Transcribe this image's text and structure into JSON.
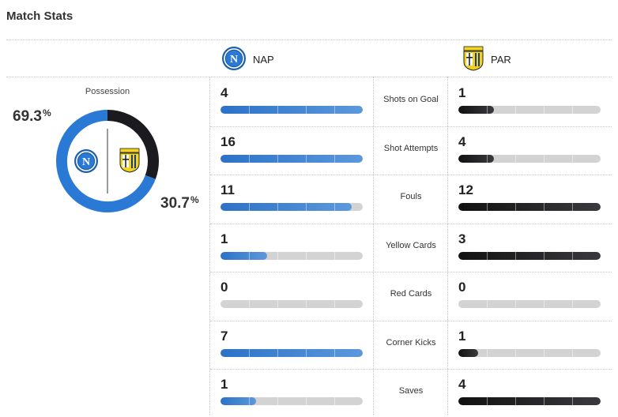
{
  "title": "Match Stats",
  "teams": {
    "home": {
      "abbr": "NAP",
      "color": "#2a7ad5"
    },
    "away": {
      "abbr": "PAR",
      "color": "#1b1b1f"
    }
  },
  "possession": {
    "label": "Possession",
    "home": 69.3,
    "away": 30.7,
    "home_text": "69.3",
    "away_text": "30.7",
    "unit": "%"
  },
  "stats": [
    {
      "label": "Shots on Goal",
      "home": "4",
      "away": "1",
      "home_fill": 1.0,
      "away_fill": 0.25
    },
    {
      "label": "Shot Attempts",
      "home": "16",
      "away": "4",
      "home_fill": 1.0,
      "away_fill": 0.25
    },
    {
      "label": "Fouls",
      "home": "11",
      "away": "12",
      "home_fill": 0.92,
      "away_fill": 1.0
    },
    {
      "label": "Yellow Cards",
      "home": "1",
      "away": "3",
      "home_fill": 0.33,
      "away_fill": 1.0
    },
    {
      "label": "Red Cards",
      "home": "0",
      "away": "0",
      "home_fill": 0.0,
      "away_fill": 0.0
    },
    {
      "label": "Corner Kicks",
      "home": "7",
      "away": "1",
      "home_fill": 1.0,
      "away_fill": 0.14
    },
    {
      "label": "Saves",
      "home": "1",
      "away": "4",
      "home_fill": 0.25,
      "away_fill": 1.0
    }
  ]
}
